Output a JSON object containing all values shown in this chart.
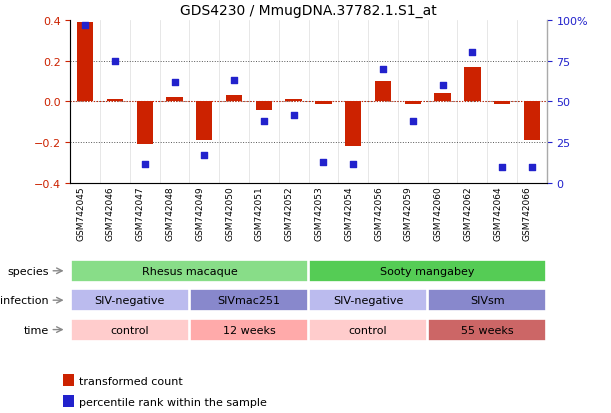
{
  "title": "GDS4230 / MmugDNA.37782.1.S1_at",
  "samples": [
    "GSM742045",
    "GSM742046",
    "GSM742047",
    "GSM742048",
    "GSM742049",
    "GSM742050",
    "GSM742051",
    "GSM742052",
    "GSM742053",
    "GSM742054",
    "GSM742056",
    "GSM742059",
    "GSM742060",
    "GSM742062",
    "GSM742064",
    "GSM742066"
  ],
  "bar_values": [
    0.39,
    0.01,
    -0.21,
    0.02,
    -0.19,
    0.03,
    -0.04,
    0.01,
    -0.01,
    -0.22,
    0.1,
    -0.01,
    0.04,
    0.17,
    -0.01,
    -0.19
  ],
  "dot_values": [
    97,
    75,
    12,
    62,
    17,
    63,
    38,
    42,
    13,
    12,
    70,
    38,
    60,
    80,
    10,
    10
  ],
  "bar_color": "#cc2200",
  "dot_color": "#2222cc",
  "ylim_left": [
    -0.4,
    0.4
  ],
  "ylim_right": [
    0,
    100
  ],
  "yticks_left": [
    -0.4,
    -0.2,
    0.0,
    0.2,
    0.4
  ],
  "yticks_right": [
    0,
    25,
    50,
    75,
    100
  ],
  "ytick_labels_right": [
    "0",
    "25",
    "50",
    "75",
    "100%"
  ],
  "hlines": [
    0.2,
    0.0,
    -0.2
  ],
  "species_labels": [
    {
      "text": "Rhesus macaque",
      "start": 0,
      "end": 7,
      "color": "#88dd88"
    },
    {
      "text": "Sooty mangabey",
      "start": 8,
      "end": 15,
      "color": "#55cc55"
    }
  ],
  "infection_labels": [
    {
      "text": "SIV-negative",
      "start": 0,
      "end": 3,
      "color": "#bbbbee"
    },
    {
      "text": "SIVmac251",
      "start": 4,
      "end": 7,
      "color": "#8888cc"
    },
    {
      "text": "SIV-negative",
      "start": 8,
      "end": 11,
      "color": "#bbbbee"
    },
    {
      "text": "SIVsm",
      "start": 12,
      "end": 15,
      "color": "#8888cc"
    }
  ],
  "time_labels": [
    {
      "text": "control",
      "start": 0,
      "end": 3,
      "color": "#ffcccc"
    },
    {
      "text": "12 weeks",
      "start": 4,
      "end": 7,
      "color": "#ffaaaa"
    },
    {
      "text": "control",
      "start": 8,
      "end": 11,
      "color": "#ffcccc"
    },
    {
      "text": "55 weeks",
      "start": 12,
      "end": 15,
      "color": "#cc6666"
    }
  ],
  "row_labels": [
    "species",
    "infection",
    "time"
  ],
  "legend": [
    {
      "color": "#cc2200",
      "label": "transformed count"
    },
    {
      "color": "#2222cc",
      "label": "percentile rank within the sample"
    }
  ]
}
